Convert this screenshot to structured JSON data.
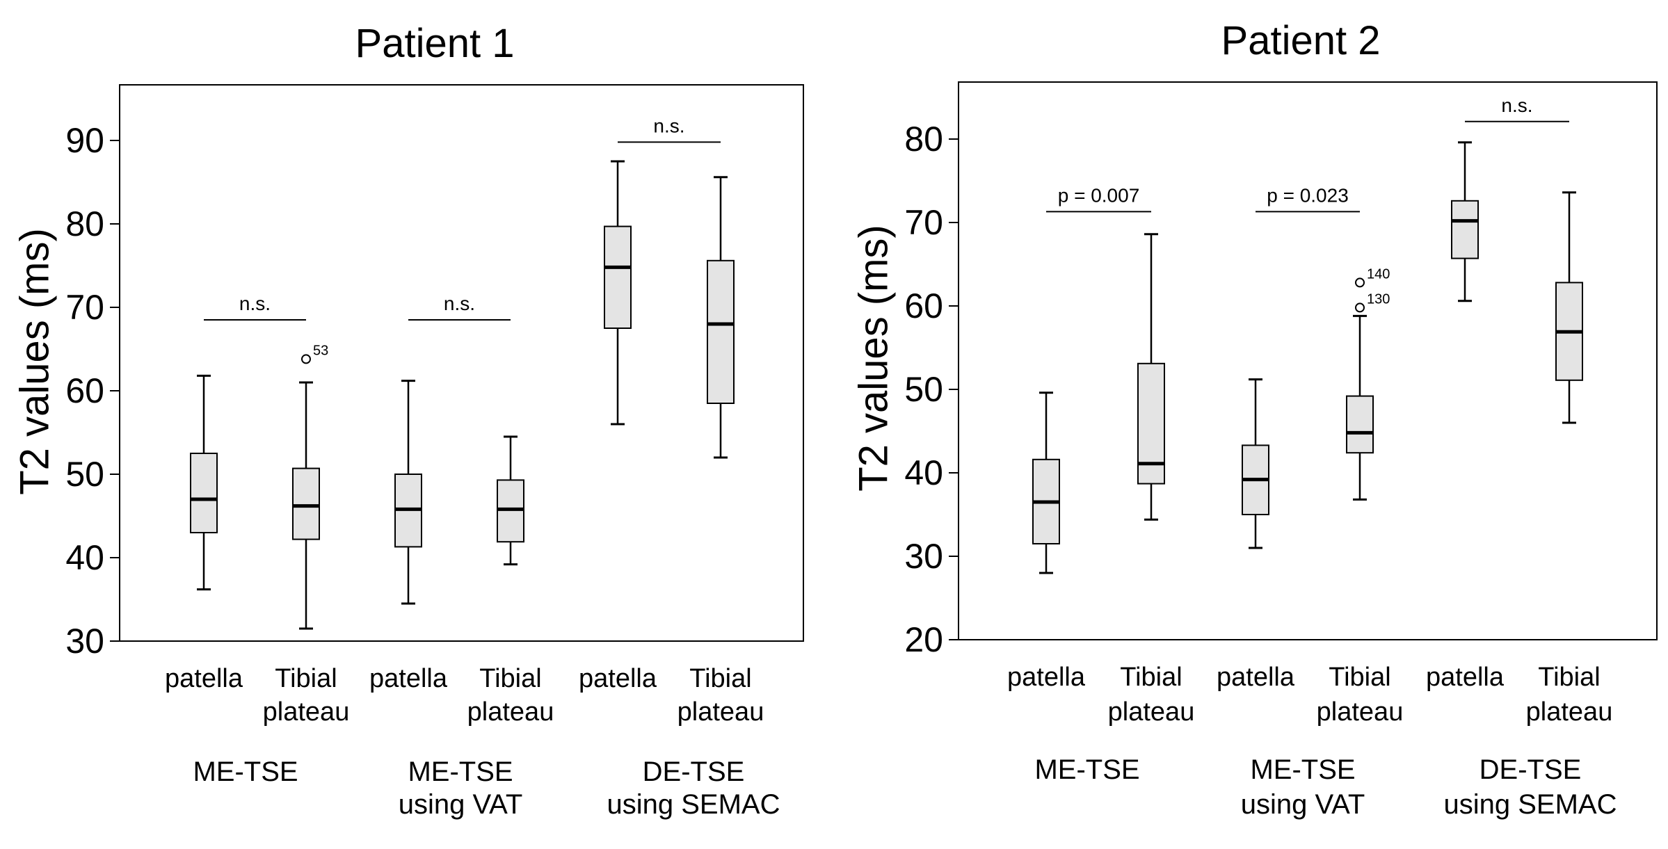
{
  "chart_data": [
    {
      "type": "boxplot",
      "title": "Patient 1",
      "ylabel": "T2 values (ms)",
      "ylim": [
        30,
        97
      ],
      "yticks": [
        "30",
        "40",
        "50",
        "60",
        "70",
        "80",
        "90"
      ],
      "boxes": [
        {
          "label": "patella",
          "group": "ME-TSE",
          "min": 36.2,
          "q1": 43.0,
          "median": 47.0,
          "q3": 52.5,
          "max": 61.8,
          "outliers": []
        },
        {
          "label": "Tibial plateau",
          "group": "ME-TSE",
          "min": 31.5,
          "q1": 42.2,
          "median": 46.2,
          "q3": 50.7,
          "max": 61.0,
          "outliers": [
            {
              "value": 63.8,
              "label": "53"
            }
          ]
        },
        {
          "label": "patella",
          "group": "ME-TSE using VAT",
          "min": 34.5,
          "q1": 41.3,
          "median": 45.8,
          "q3": 50.0,
          "max": 61.2,
          "outliers": []
        },
        {
          "label": "Tibial plateau",
          "group": "ME-TSE using VAT",
          "min": 39.2,
          "q1": 41.9,
          "median": 45.8,
          "q3": 49.3,
          "max": 54.5,
          "outliers": []
        },
        {
          "label": "patella",
          "group": "DE-TSE using SEMAC",
          "min": 56.0,
          "q1": 67.5,
          "median": 74.8,
          "q3": 79.7,
          "max": 87.5,
          "outliers": []
        },
        {
          "label": "Tibial plateau",
          "group": "DE-TSE using SEMAC",
          "min": 52.0,
          "q1": 58.5,
          "median": 68.0,
          "q3": 75.6,
          "max": 85.6,
          "outliers": []
        }
      ],
      "brackets": [
        {
          "between": [
            0,
            1
          ],
          "text": "n.s.",
          "y": 68.5
        },
        {
          "between": [
            2,
            3
          ],
          "text": "n.s.",
          "y": 68.5
        },
        {
          "between": [
            4,
            5
          ],
          "text": "n.s.",
          "y": 89.8
        }
      ],
      "groups": [
        {
          "lines": [
            "ME-TSE"
          ]
        },
        {
          "lines": [
            "ME-TSE",
            "using VAT"
          ]
        },
        {
          "lines": [
            "DE-TSE",
            "using SEMAC"
          ]
        }
      ],
      "category_labels": [
        [
          "patella"
        ],
        [
          "Tibial",
          "plateau"
        ],
        [
          "patella"
        ],
        [
          "Tibial",
          "plateau"
        ],
        [
          "patella"
        ],
        [
          "Tibial",
          "plateau"
        ]
      ]
    },
    {
      "type": "boxplot",
      "title": "Patient 2",
      "ylabel": "T2 values (ms)",
      "ylim": [
        20,
        86.9
      ],
      "yticks": [
        "20",
        "30",
        "40",
        "50",
        "60",
        "70",
        "80"
      ],
      "boxes": [
        {
          "label": "patella",
          "group": "ME-TSE",
          "min": 28.0,
          "q1": 31.5,
          "median": 36.5,
          "q3": 41.6,
          "max": 49.6,
          "outliers": []
        },
        {
          "label": "Tibial plateau",
          "group": "ME-TSE",
          "min": 34.4,
          "q1": 38.7,
          "median": 41.1,
          "q3": 53.1,
          "max": 68.6,
          "outliers": []
        },
        {
          "label": "patella",
          "group": "ME-TSE using VAT",
          "min": 31.0,
          "q1": 35.0,
          "median": 39.2,
          "q3": 43.3,
          "max": 51.2,
          "outliers": []
        },
        {
          "label": "Tibial plateau",
          "group": "ME-TSE using VAT",
          "min": 36.8,
          "q1": 42.4,
          "median": 44.8,
          "q3": 49.2,
          "max": 58.8,
          "outliers": [
            {
              "value": 62.8,
              "label": "140"
            },
            {
              "value": 59.8,
              "label": "130"
            }
          ]
        },
        {
          "label": "patella",
          "group": "DE-TSE using SEMAC",
          "min": 60.6,
          "q1": 65.7,
          "median": 70.2,
          "q3": 72.6,
          "max": 79.6,
          "outliers": []
        },
        {
          "label": "Tibial plateau",
          "group": "DE-TSE using SEMAC",
          "min": 46.0,
          "q1": 51.1,
          "median": 56.9,
          "q3": 62.8,
          "max": 73.6,
          "outliers": []
        }
      ],
      "brackets": [
        {
          "between": [
            0,
            1
          ],
          "text": "p = 0.007",
          "y": 71.3
        },
        {
          "between": [
            2,
            3
          ],
          "text": "p = 0.023",
          "y": 71.3
        },
        {
          "between": [
            4,
            5
          ],
          "text": "n.s.",
          "y": 82.1
        }
      ],
      "groups": [
        {
          "lines": [
            "ME-TSE"
          ]
        },
        {
          "lines": [
            "ME-TSE",
            "using VAT"
          ]
        },
        {
          "lines": [
            "DE-TSE",
            "using SEMAC"
          ]
        }
      ],
      "category_labels": [
        [
          "patella"
        ],
        [
          "Tibial",
          "plateau"
        ],
        [
          "patella"
        ],
        [
          "Tibial",
          "plateau"
        ],
        [
          "patella"
        ],
        [
          "Tibial",
          "plateau"
        ]
      ]
    }
  ],
  "colors": {
    "box_fill": "#e4e4e4",
    "stroke": "#000000",
    "background": "#ffffff"
  }
}
